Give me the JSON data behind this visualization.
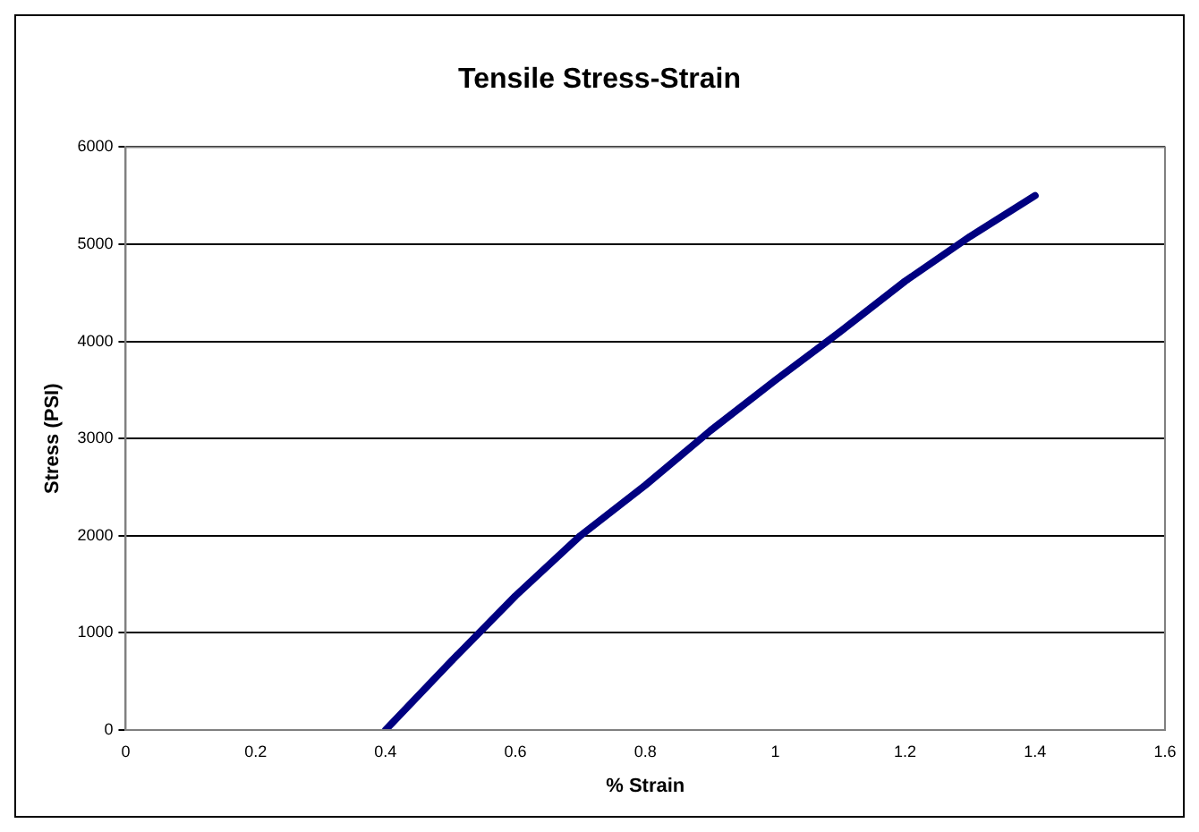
{
  "chart_data": {
    "type": "line",
    "title": "Tensile Stress-Strain",
    "xlabel": "% Strain",
    "ylabel": "Stress (PSI)",
    "series": [
      {
        "color": "#000080",
        "x": [
          0.4,
          0.5,
          0.6,
          0.7,
          0.8,
          0.9,
          1.0,
          1.1,
          1.2,
          1.3,
          1.4
        ],
        "values": [
          0,
          700,
          1380,
          2000,
          2520,
          3080,
          3600,
          4100,
          4620,
          5080,
          5500
        ]
      }
    ],
    "xlim": [
      0,
      1.6
    ],
    "xticks": [
      0,
      0.2,
      0.4,
      0.6,
      0.8,
      1,
      1.2,
      1.4,
      1.6
    ],
    "ylim": [
      0,
      6000
    ],
    "yticks": [
      0,
      1000,
      2000,
      3000,
      4000,
      5000,
      6000
    ],
    "grid": "y",
    "marker": "none",
    "line_style": "solid"
  }
}
